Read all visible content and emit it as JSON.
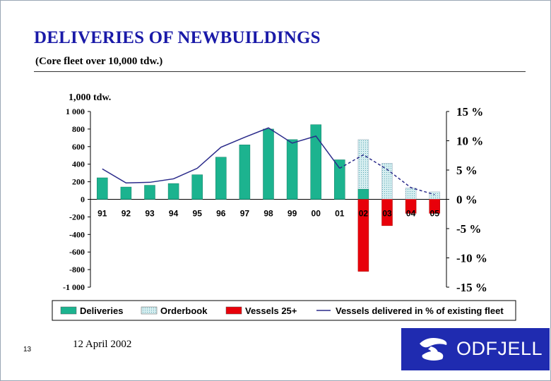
{
  "slide": {
    "title": "DELIVERIES OF NEWBUILDINGS",
    "subtitle": "(Core fleet over 10,000 tdw.)",
    "page_number": "13",
    "date": "12 April 2002"
  },
  "logo": {
    "text": "ODFJELL",
    "icon": "odfjell-swirl-icon",
    "background": "#1f2bb0"
  },
  "colors": {
    "deliveries": "#1cb38f",
    "orderbook": "#d6eef0",
    "vessels25": "#e8000a",
    "line": "#2a2a8a",
    "title": "#1a1aa8"
  },
  "chart_data": {
    "type": "bar",
    "unit_label": "1,000 tdw.",
    "categories": [
      "91",
      "92",
      "93",
      "94",
      "95",
      "96",
      "97",
      "98",
      "99",
      "00",
      "01",
      "02",
      "03",
      "04",
      "05"
    ],
    "ylim": [
      -1000,
      1000
    ],
    "y_ticks": [
      1000,
      800,
      600,
      400,
      200,
      0,
      -200,
      -400,
      -600,
      -800,
      -1000
    ],
    "y_tick_labels": [
      "1 000",
      "800",
      "600",
      "400",
      "200",
      "0",
      "-200",
      "-400",
      "-600",
      "-800",
      "-1 000"
    ],
    "y2lim": [
      -15,
      15
    ],
    "y2_ticks": [
      15,
      10,
      5,
      0,
      -5,
      -10,
      -15
    ],
    "y2_tick_labels": [
      "15 %",
      "10 %",
      "5 %",
      "0 %",
      "-5 %",
      "-10 %",
      "-15 %"
    ],
    "grid": false,
    "legend_position": "bottom",
    "series": [
      {
        "name": "Deliveries",
        "kind": "bar",
        "values": [
          245,
          140,
          160,
          180,
          280,
          480,
          620,
          800,
          680,
          850,
          450,
          115,
          0,
          0,
          0
        ]
      },
      {
        "name": "Orderbook",
        "kind": "bar",
        "values": [
          0,
          0,
          0,
          0,
          0,
          0,
          0,
          0,
          0,
          0,
          0,
          565,
          410,
          130,
          85
        ]
      },
      {
        "name": "Vessels 25+",
        "kind": "bar",
        "values": [
          0,
          0,
          0,
          0,
          0,
          0,
          0,
          0,
          0,
          0,
          0,
          -820,
          -300,
          -160,
          -160
        ]
      },
      {
        "name": "Vessels delivered in % of existing fleet",
        "kind": "line",
        "axis": "right",
        "values": [
          5.2,
          2.8,
          2.9,
          3.5,
          5.3,
          8.9,
          10.6,
          12.2,
          9.6,
          10.8,
          5.3,
          7.6,
          5.1,
          2.0,
          0.8
        ]
      }
    ]
  }
}
